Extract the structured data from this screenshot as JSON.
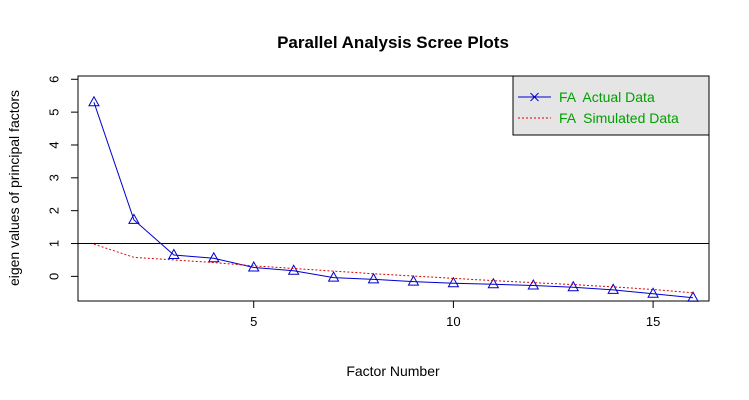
{
  "chart_data": {
    "type": "line",
    "title": "Parallel Analysis Scree Plots",
    "xlabel": "Factor Number",
    "ylabel": "eigen values of principal factors",
    "xlim": [
      0.6,
      16.4
    ],
    "ylim": [
      -0.75,
      6.1
    ],
    "xticks": [
      5,
      10,
      15
    ],
    "yticks": [
      0,
      1,
      2,
      3,
      4,
      5,
      6
    ],
    "reference_line_y": 1,
    "x": [
      1,
      2,
      3,
      4,
      5,
      6,
      7,
      8,
      9,
      10,
      11,
      12,
      13,
      14,
      15,
      16
    ],
    "series": [
      {
        "name": "FA  Actual Data",
        "color": "#0000cc",
        "marker": "triangle",
        "values": [
          5.3,
          1.72,
          0.65,
          0.55,
          0.27,
          0.17,
          -0.04,
          -0.09,
          -0.16,
          -0.21,
          -0.24,
          -0.28,
          -0.33,
          -0.41,
          -0.53,
          -0.65
        ]
      },
      {
        "name": "FA  Simulated Data",
        "color": "#dd0000",
        "dashed": true,
        "values": [
          0.98,
          0.58,
          0.5,
          0.42,
          0.32,
          0.24,
          0.16,
          0.08,
          0.01,
          -0.06,
          -0.13,
          -0.19,
          -0.25,
          -0.32,
          -0.4,
          -0.5
        ]
      }
    ],
    "legend": {
      "placement": "top-right",
      "background": "#e5e5e5",
      "text_color": "#00a000"
    }
  }
}
